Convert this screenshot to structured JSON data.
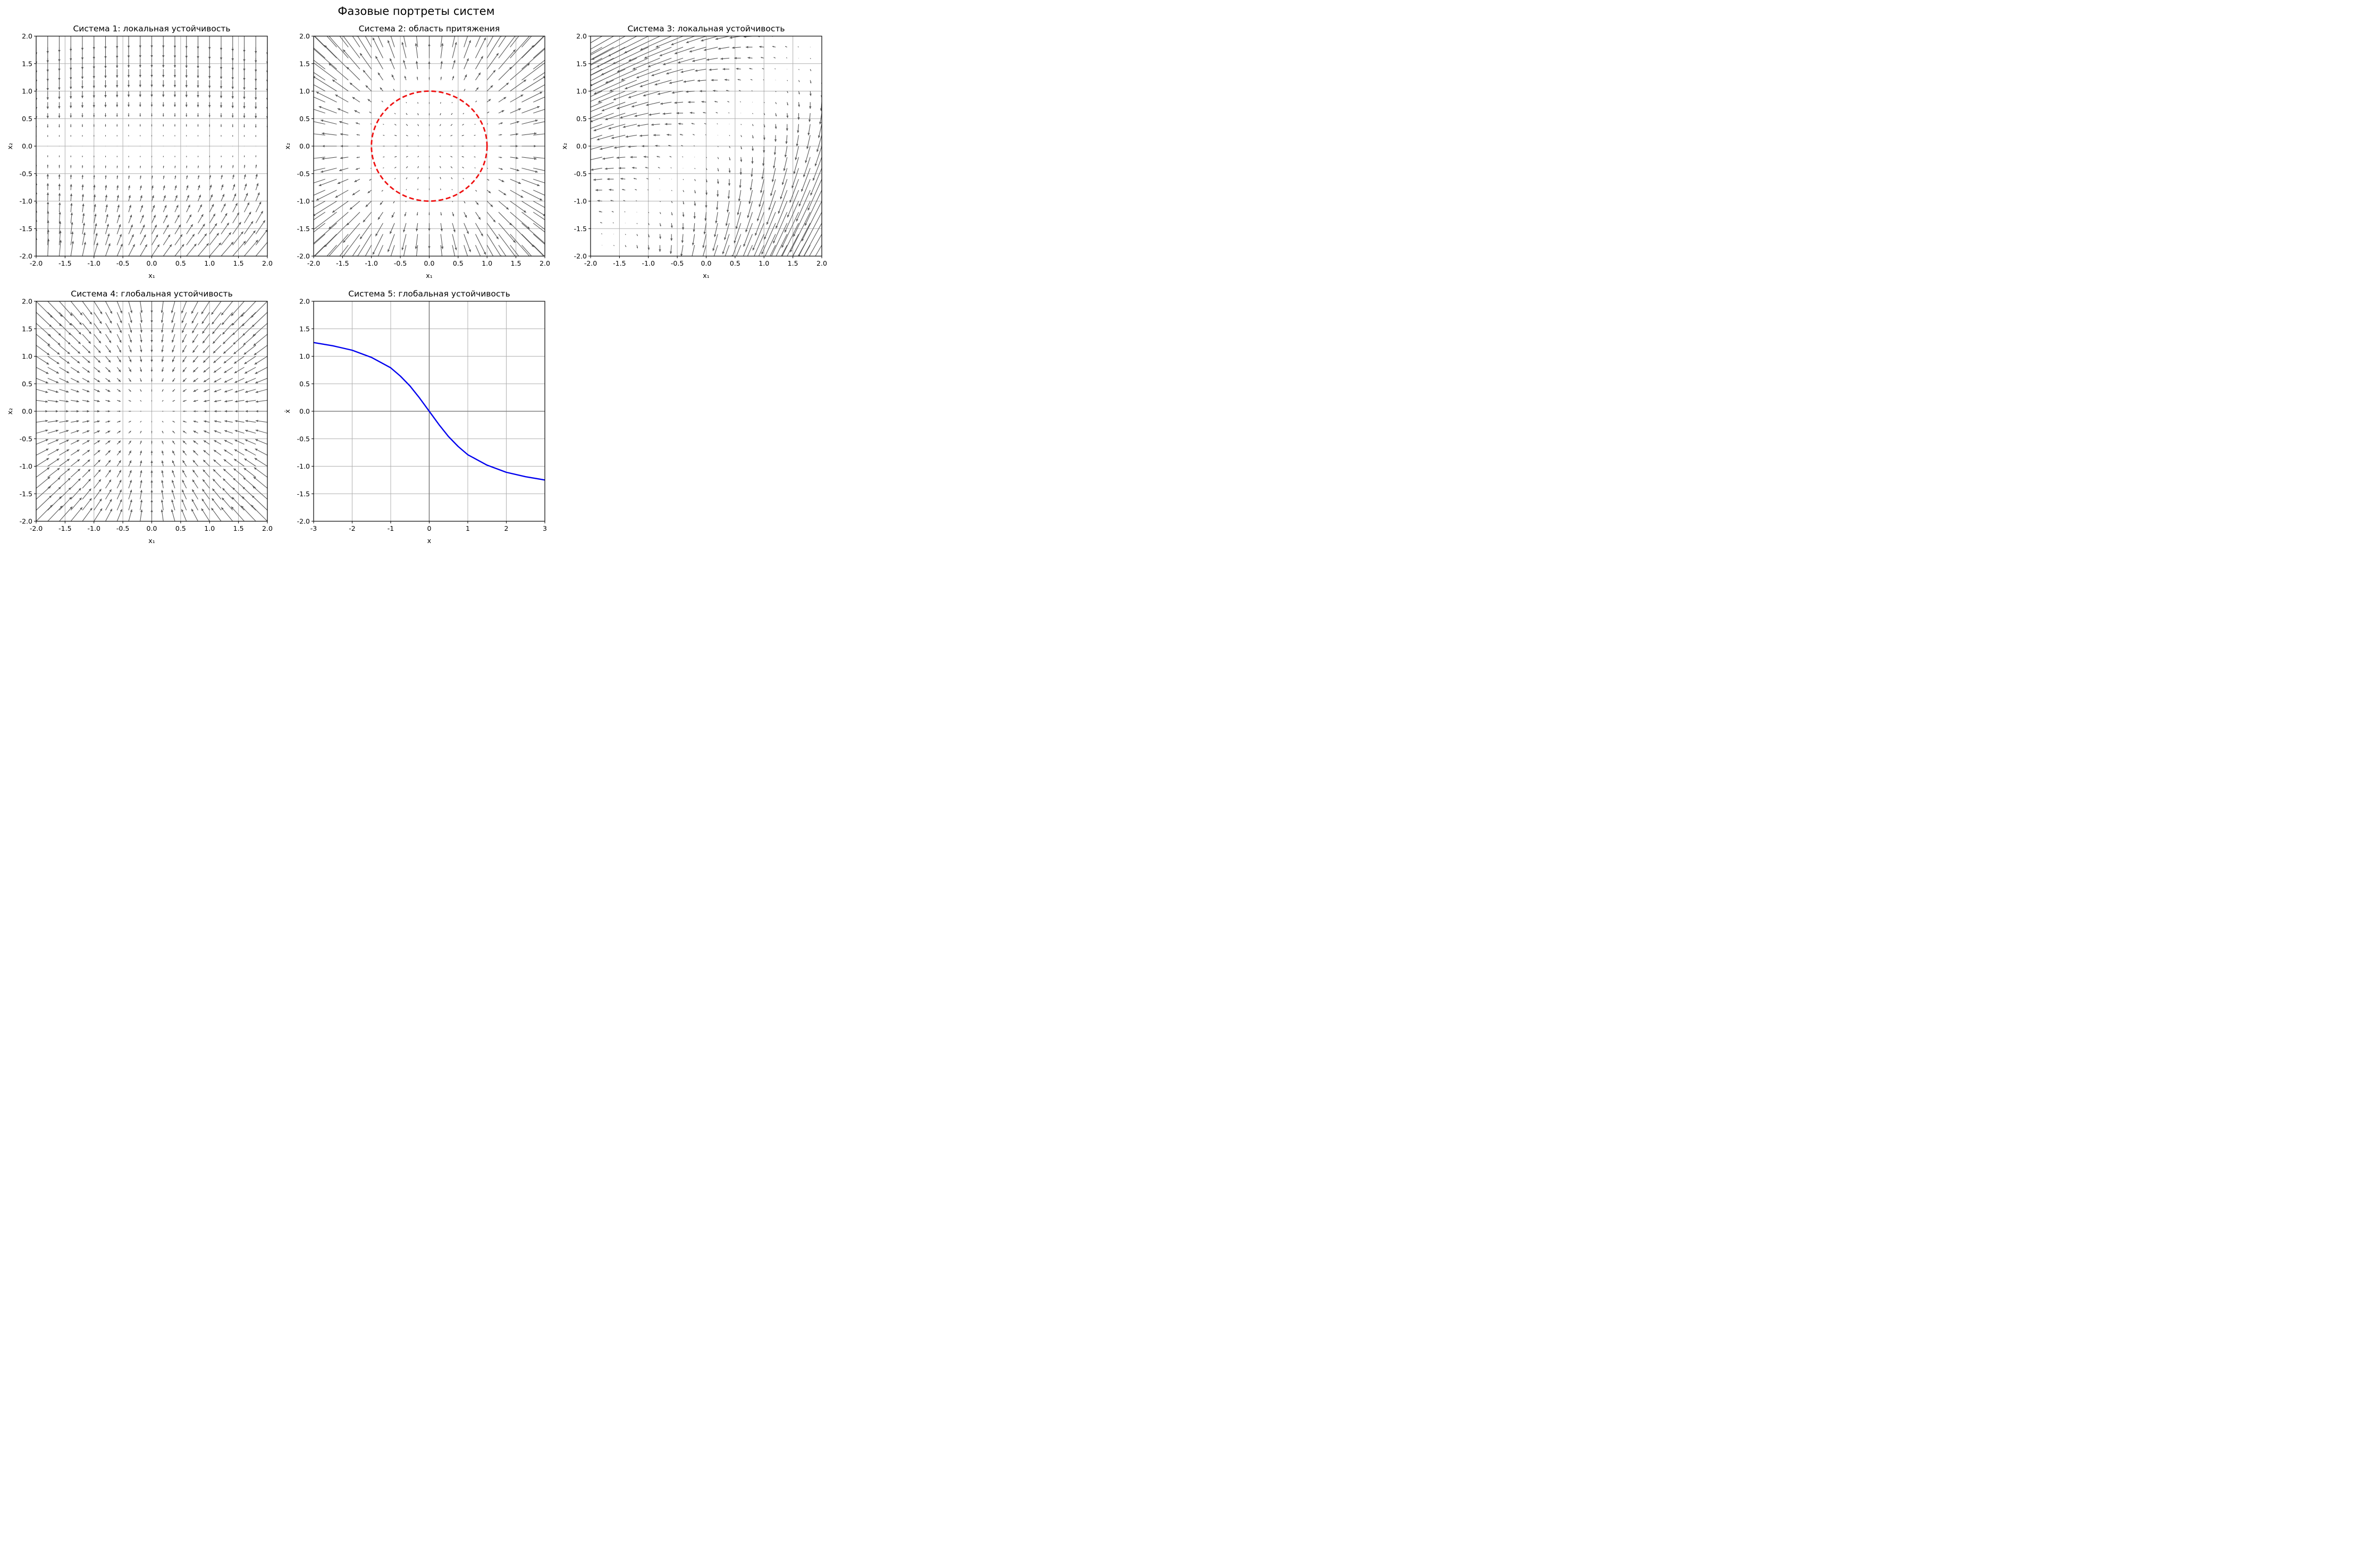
{
  "figure_title": "Фазовые портреты систем",
  "chart_data": [
    {
      "type": "quiver",
      "title": "Система 1: локальная устойчивость",
      "xlabel": "x₁",
      "ylabel": "x₂",
      "xlim": [
        -2,
        2
      ],
      "ylim": [
        -2,
        2
      ],
      "xticks": [
        "-2.0",
        "-1.5",
        "-1.0",
        "-0.5",
        "0.0",
        "0.5",
        "1.0",
        "1.5",
        "2.0"
      ],
      "yticks": [
        "-2.0",
        "-1.5",
        "-1.0",
        "-0.5",
        "0.0",
        "0.5",
        "1.0",
        "1.5",
        "2.0"
      ],
      "grid": true,
      "arrow_color": "#555555",
      "field_description": "vectors point toward x₂ = 0 (down above, up below), strongest at bottom corners"
    },
    {
      "type": "quiver",
      "title": "Система 2: область притяжения",
      "xlabel": "x₁",
      "ylabel": "x₂",
      "xlim": [
        -2,
        2
      ],
      "ylim": [
        -2,
        2
      ],
      "xticks": [
        "-2.0",
        "-1.5",
        "-1.0",
        "-0.5",
        "0.0",
        "0.5",
        "1.0",
        "1.5",
        "2.0"
      ],
      "yticks": [
        "-2.0",
        "-1.5",
        "-1.0",
        "-0.5",
        "0.0",
        "0.5",
        "1.0",
        "1.5",
        "2.0"
      ],
      "grid": true,
      "arrow_color": "#555555",
      "region": {
        "shape": "circle",
        "center": [
          0,
          0
        ],
        "radius": 1.0,
        "style": "dashed",
        "color": "#ee1111"
      }
    },
    {
      "type": "quiver",
      "title": "Система 3: локальная устойчивость",
      "xlabel": "x₁",
      "ylabel": "x₂",
      "xlim": [
        -2,
        2
      ],
      "ylim": [
        -2,
        2
      ],
      "xticks": [
        "-2.0",
        "-1.5",
        "-1.0",
        "-0.5",
        "0.0",
        "0.5",
        "1.0",
        "1.5",
        "2.0"
      ],
      "yticks": [
        "-2.0",
        "-1.5",
        "-1.0",
        "-0.5",
        "0.0",
        "0.5",
        "1.0",
        "1.5",
        "2.0"
      ],
      "grid": true,
      "arrow_color": "#555555"
    },
    {
      "type": "quiver",
      "title": "Система 4: глобальная устойчивость",
      "xlabel": "x₁",
      "ylabel": "x₂",
      "xlim": [
        -2,
        2
      ],
      "ylim": [
        -2,
        2
      ],
      "xticks": [
        "-2.0",
        "-1.5",
        "-1.0",
        "-0.5",
        "0.0",
        "0.5",
        "1.0",
        "1.5",
        "2.0"
      ],
      "yticks": [
        "-2.0",
        "-1.5",
        "-1.0",
        "-0.5",
        "0.0",
        "0.5",
        "1.0",
        "1.5",
        "2.0"
      ],
      "grid": true,
      "arrow_color": "#555555"
    },
    {
      "type": "line",
      "title": "Система 5: глобальная устойчивость",
      "xlabel": "x",
      "ylabel": "ẋ",
      "xlim": [
        -3,
        3
      ],
      "ylim": [
        -2,
        2
      ],
      "xticks": [
        "-3",
        "-2",
        "-1",
        "0",
        "1",
        "2",
        "3"
      ],
      "yticks": [
        "-2.0",
        "-1.5",
        "-1.0",
        "-0.5",
        "0.0",
        "0.5",
        "1.0",
        "1.5",
        "2.0"
      ],
      "grid": true,
      "line_color": "#0000ee",
      "x": [
        -3,
        -2.5,
        -2,
        -1.5,
        -1,
        -0.75,
        -0.5,
        -0.25,
        0,
        0.25,
        0.5,
        0.75,
        1,
        1.5,
        2,
        2.5,
        3
      ],
      "y": [
        1.25,
        1.19,
        1.11,
        0.98,
        0.79,
        0.64,
        0.46,
        0.24,
        0,
        -0.24,
        -0.46,
        -0.64,
        -0.79,
        -0.98,
        -1.11,
        -1.19,
        -1.25
      ]
    }
  ]
}
